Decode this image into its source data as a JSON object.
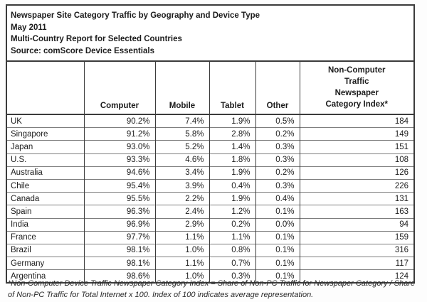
{
  "page": {
    "title_lines": [
      "Newspaper Site Category Traffic by Geography and Device Type",
      "May 2011",
      "Multi-Country Report for Selected Countries",
      "Source: comScore Device Essentials"
    ]
  },
  "table": {
    "index_header_multiline": "Non-Computer\nTraffic\nNewspaper\nCategory Index*"
  },
  "chart_data": {
    "type": "table",
    "title": "Newspaper Site Category Traffic by Geography and Device Type",
    "date": "May 2011",
    "report": "Multi-Country Report for Selected Countries",
    "source": "Source: comScore Device Essentials",
    "columns": [
      "",
      "Computer",
      "Mobile",
      "Tablet",
      "Other",
      "Non-Computer Traffic Newspaper Category Index*"
    ],
    "rows": [
      [
        "UK",
        "90.2%",
        "7.4%",
        "1.9%",
        "0.5%",
        "184"
      ],
      [
        "Singapore",
        "91.2%",
        "5.8%",
        "2.8%",
        "0.2%",
        "149"
      ],
      [
        "Japan",
        "93.0%",
        "5.2%",
        "1.4%",
        "0.3%",
        "151"
      ],
      [
        "U.S.",
        "93.3%",
        "4.6%",
        "1.8%",
        "0.3%",
        "108"
      ],
      [
        "Australia",
        "94.6%",
        "3.4%",
        "1.9%",
        "0.2%",
        "126"
      ],
      [
        "Chile",
        "95.4%",
        "3.9%",
        "0.4%",
        "0.3%",
        "226"
      ],
      [
        "Canada",
        "95.5%",
        "2.2%",
        "1.9%",
        "0.4%",
        "131"
      ],
      [
        "Spain",
        "96.3%",
        "2.4%",
        "1.2%",
        "0.1%",
        "163"
      ],
      [
        "India",
        "96.9%",
        "2.9%",
        "0.2%",
        "0.0%",
        "94"
      ],
      [
        "France",
        "97.7%",
        "1.1%",
        "1.1%",
        "0.1%",
        "159"
      ],
      [
        "Brazil",
        "98.1%",
        "1.0%",
        "0.8%",
        "0.1%",
        "316"
      ],
      [
        "Germany",
        "98.1%",
        "1.1%",
        "0.7%",
        "0.1%",
        "117"
      ],
      [
        "Argentina",
        "98.6%",
        "1.0%",
        "0.3%",
        "0.1%",
        "124"
      ]
    ]
  },
  "footnote": "*Non-Computer Device Traffic Newspaper Category Index = Share of Non-PC Traffic for Newspaper Category / Share of Non-PC Traffic for Total Internet x 100. Index of 100 indicates average representation.",
  "colors": {
    "border_heavy": "#3b3b3b",
    "border_row": "#7d7d7d",
    "text": "#1c1c1c",
    "background": "#ffffff"
  }
}
